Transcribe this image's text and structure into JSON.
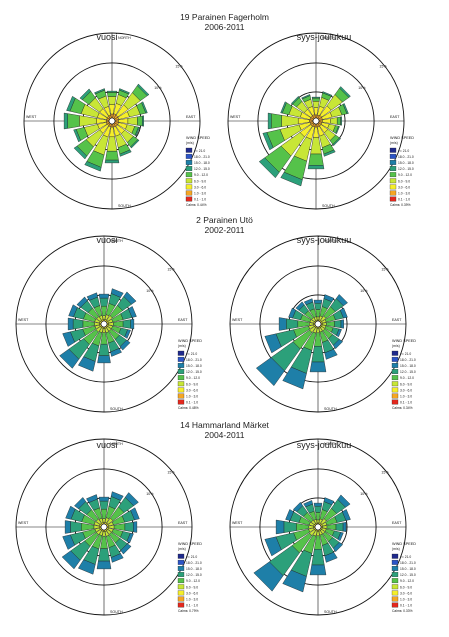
{
  "figure": {
    "title": ""
  },
  "legend_title": [
    "WIND SPEED",
    "(m/s)"
  ],
  "speed_bins": [
    {
      "label": ">= 21.0",
      "color": "#1f2a8c"
    },
    {
      "label": "18.0 - 21.0",
      "color": "#2c55c8"
    },
    {
      "label": "15.0 - 18.0",
      "color": "#1e7fa8"
    },
    {
      "label": "12.0 - 15.0",
      "color": "#2ca07a"
    },
    {
      "label": "9.0 - 12.0",
      "color": "#55c24a"
    },
    {
      "label": "6.0 - 9.0",
      "color": "#c8e636"
    },
    {
      "label": "3.0 - 6.0",
      "color": "#f5ee2a"
    },
    {
      "label": "1.0 - 3.0",
      "color": "#f5a623"
    },
    {
      "label": "0.1 - 1.0",
      "color": "#e2281e"
    }
  ],
  "compass": {
    "north": "NORTH",
    "south": "SOUTH",
    "east": "EAST",
    "west": "WEST"
  },
  "ring_labels": [
    "5%",
    "10%",
    "15%"
  ],
  "stations": [
    {
      "name": "19 Parainen Fagerholm",
      "period": "2006-2011"
    },
    {
      "name": "2 Parainen Utö",
      "period": "2002-2011"
    },
    {
      "name": "14 Hammarland Märket",
      "period": "2004-2011"
    }
  ],
  "panel_titles": [
    "vuosi",
    "syys-joulukuu"
  ],
  "chart_data": [
    {
      "type": "windrose",
      "station": "19 Parainen Fagerholm",
      "panel": "vuosi",
      "calms": "Calms: 0.44%",
      "directions": 16,
      "rmax_percent": 15,
      "totals": [
        4.5,
        5,
        7,
        5.5,
        4.8,
        4.2,
        5,
        5.5,
        6.5,
        8,
        7.2,
        6,
        7.5,
        7.2,
        6,
        5
      ],
      "mix": [
        [
          0.15,
          0.35,
          0.3,
          0.15,
          0.05
        ],
        [
          0.15,
          0.35,
          0.3,
          0.15,
          0.05
        ],
        [
          0.1,
          0.3,
          0.35,
          0.2,
          0.05
        ],
        [
          0.12,
          0.33,
          0.33,
          0.17,
          0.05
        ],
        [
          0.12,
          0.33,
          0.33,
          0.17,
          0.05
        ],
        [
          0.15,
          0.35,
          0.3,
          0.15,
          0.05
        ],
        [
          0.12,
          0.3,
          0.35,
          0.18,
          0.05
        ],
        [
          0.1,
          0.28,
          0.35,
          0.2,
          0.07
        ],
        [
          0.08,
          0.25,
          0.37,
          0.23,
          0.07
        ],
        [
          0.06,
          0.22,
          0.38,
          0.26,
          0.08
        ],
        [
          0.06,
          0.22,
          0.38,
          0.26,
          0.08
        ],
        [
          0.08,
          0.25,
          0.37,
          0.23,
          0.07
        ],
        [
          0.06,
          0.22,
          0.38,
          0.26,
          0.08
        ],
        [
          0.06,
          0.22,
          0.38,
          0.26,
          0.08
        ],
        [
          0.08,
          0.26,
          0.36,
          0.22,
          0.08
        ],
        [
          0.1,
          0.3,
          0.35,
          0.2,
          0.05
        ]
      ]
    },
    {
      "type": "windrose",
      "station": "19 Parainen Fagerholm",
      "panel": "syys-joulukuu",
      "calms": "Calms: 0.39%",
      "directions": 16,
      "rmax_percent": 15,
      "totals": [
        3.5,
        4.5,
        6.5,
        5,
        3.8,
        3.5,
        4.5,
        5.5,
        7.5,
        10.5,
        11,
        8.5,
        7.5,
        5.5,
        4.5,
        4
      ],
      "mix": [
        [
          0.15,
          0.35,
          0.3,
          0.15,
          0.05
        ],
        [
          0.12,
          0.33,
          0.33,
          0.17,
          0.05
        ],
        [
          0.1,
          0.3,
          0.35,
          0.2,
          0.05
        ],
        [
          0.12,
          0.33,
          0.33,
          0.17,
          0.05
        ],
        [
          0.15,
          0.35,
          0.3,
          0.15,
          0.05
        ],
        [
          0.15,
          0.35,
          0.3,
          0.15,
          0.05
        ],
        [
          0.12,
          0.3,
          0.35,
          0.18,
          0.05
        ],
        [
          0.1,
          0.28,
          0.35,
          0.2,
          0.07
        ],
        [
          0.07,
          0.23,
          0.37,
          0.25,
          0.08
        ],
        [
          0.05,
          0.2,
          0.35,
          0.3,
          0.1
        ],
        [
          0.05,
          0.2,
          0.35,
          0.3,
          0.1
        ],
        [
          0.06,
          0.22,
          0.38,
          0.26,
          0.08
        ],
        [
          0.08,
          0.25,
          0.37,
          0.23,
          0.07
        ],
        [
          0.1,
          0.3,
          0.35,
          0.2,
          0.05
        ],
        [
          0.12,
          0.3,
          0.35,
          0.18,
          0.05
        ],
        [
          0.15,
          0.35,
          0.3,
          0.15,
          0.05
        ]
      ]
    },
    {
      "type": "windrose",
      "station": "2 Parainen Utö",
      "panel": "vuosi",
      "calms": "Calms: 0.48%",
      "directions": 16,
      "rmax_percent": 15,
      "totals": [
        4.5,
        5.5,
        6,
        5,
        4.5,
        4,
        4.8,
        5,
        6,
        7.5,
        8.5,
        6.5,
        5.5,
        5.5,
        5,
        4.8
      ],
      "mix": [
        [
          0.05,
          0.15,
          0.35,
          0.3,
          0.15
        ],
        [
          0.05,
          0.15,
          0.35,
          0.3,
          0.15
        ],
        [
          0.05,
          0.15,
          0.35,
          0.3,
          0.15
        ],
        [
          0.05,
          0.15,
          0.35,
          0.3,
          0.15
        ],
        [
          0.06,
          0.18,
          0.36,
          0.28,
          0.12
        ],
        [
          0.06,
          0.18,
          0.36,
          0.28,
          0.12
        ],
        [
          0.05,
          0.15,
          0.35,
          0.3,
          0.15
        ],
        [
          0.05,
          0.15,
          0.35,
          0.3,
          0.15
        ],
        [
          0.04,
          0.12,
          0.32,
          0.32,
          0.2
        ],
        [
          0.03,
          0.1,
          0.3,
          0.35,
          0.22
        ],
        [
          0.03,
          0.1,
          0.3,
          0.35,
          0.22
        ],
        [
          0.04,
          0.12,
          0.32,
          0.32,
          0.2
        ],
        [
          0.05,
          0.15,
          0.35,
          0.3,
          0.15
        ],
        [
          0.05,
          0.15,
          0.35,
          0.3,
          0.15
        ],
        [
          0.05,
          0.15,
          0.35,
          0.3,
          0.15
        ],
        [
          0.05,
          0.15,
          0.35,
          0.3,
          0.15
        ]
      ]
    },
    {
      "type": "windrose",
      "station": "2 Parainen Utö",
      "panel": "syys-joulukuu",
      "calms": "Calms: 0.34%",
      "directions": 16,
      "rmax_percent": 15,
      "totals": [
        3.5,
        4.5,
        5.5,
        4.5,
        3.8,
        3.5,
        4.5,
        5.5,
        7.5,
        10.5,
        12,
        8.5,
        6,
        4.5,
        4,
        3.8
      ],
      "mix": [
        [
          0.05,
          0.15,
          0.35,
          0.3,
          0.15
        ],
        [
          0.05,
          0.15,
          0.35,
          0.3,
          0.15
        ],
        [
          0.05,
          0.15,
          0.35,
          0.3,
          0.15
        ],
        [
          0.05,
          0.15,
          0.35,
          0.3,
          0.15
        ],
        [
          0.06,
          0.18,
          0.36,
          0.28,
          0.12
        ],
        [
          0.06,
          0.18,
          0.36,
          0.28,
          0.12
        ],
        [
          0.05,
          0.15,
          0.35,
          0.3,
          0.15
        ],
        [
          0.04,
          0.12,
          0.32,
          0.32,
          0.2
        ],
        [
          0.03,
          0.1,
          0.3,
          0.35,
          0.22
        ],
        [
          0.02,
          0.08,
          0.28,
          0.37,
          0.25
        ],
        [
          0.02,
          0.08,
          0.28,
          0.37,
          0.25
        ],
        [
          0.03,
          0.1,
          0.3,
          0.35,
          0.22
        ],
        [
          0.04,
          0.12,
          0.32,
          0.32,
          0.2
        ],
        [
          0.05,
          0.15,
          0.35,
          0.3,
          0.15
        ],
        [
          0.05,
          0.15,
          0.35,
          0.3,
          0.15
        ],
        [
          0.05,
          0.15,
          0.35,
          0.3,
          0.15
        ]
      ]
    },
    {
      "type": "windrose",
      "station": "14 Hammarland Märket",
      "panel": "vuosi",
      "calms": "Calms: 0.79%",
      "directions": 16,
      "rmax_percent": 15,
      "totals": [
        4.5,
        5.5,
        6.5,
        5.5,
        5,
        4.5,
        5,
        5.5,
        6.5,
        7.5,
        8,
        6.5,
        6,
        6,
        5.5,
        5
      ],
      "mix": [
        [
          0.05,
          0.15,
          0.35,
          0.3,
          0.15
        ],
        [
          0.05,
          0.15,
          0.35,
          0.3,
          0.15
        ],
        [
          0.05,
          0.15,
          0.35,
          0.3,
          0.15
        ],
        [
          0.05,
          0.15,
          0.35,
          0.3,
          0.15
        ],
        [
          0.06,
          0.18,
          0.36,
          0.28,
          0.12
        ],
        [
          0.06,
          0.18,
          0.36,
          0.28,
          0.12
        ],
        [
          0.05,
          0.15,
          0.35,
          0.3,
          0.15
        ],
        [
          0.05,
          0.15,
          0.35,
          0.3,
          0.15
        ],
        [
          0.04,
          0.12,
          0.32,
          0.32,
          0.2
        ],
        [
          0.03,
          0.1,
          0.3,
          0.35,
          0.22
        ],
        [
          0.03,
          0.1,
          0.3,
          0.35,
          0.22
        ],
        [
          0.04,
          0.12,
          0.32,
          0.32,
          0.2
        ],
        [
          0.05,
          0.15,
          0.35,
          0.3,
          0.15
        ],
        [
          0.05,
          0.15,
          0.35,
          0.3,
          0.15
        ],
        [
          0.05,
          0.15,
          0.35,
          0.3,
          0.15
        ],
        [
          0.05,
          0.15,
          0.35,
          0.3,
          0.15
        ]
      ]
    },
    {
      "type": "windrose",
      "station": "14 Hammarland Märket",
      "panel": "syys-joulukuu",
      "calms": "Calms: 0.33%",
      "directions": 16,
      "rmax_percent": 15,
      "totals": [
        3.5,
        4.5,
        6,
        5,
        4.2,
        3.8,
        4.5,
        5.5,
        7.5,
        10.5,
        12.5,
        8.5,
        6.5,
        5,
        4.5,
        4
      ],
      "mix": [
        [
          0.05,
          0.15,
          0.35,
          0.3,
          0.15
        ],
        [
          0.05,
          0.15,
          0.35,
          0.3,
          0.15
        ],
        [
          0.05,
          0.15,
          0.35,
          0.3,
          0.15
        ],
        [
          0.05,
          0.15,
          0.35,
          0.3,
          0.15
        ],
        [
          0.06,
          0.18,
          0.36,
          0.28,
          0.12
        ],
        [
          0.06,
          0.18,
          0.36,
          0.28,
          0.12
        ],
        [
          0.05,
          0.15,
          0.35,
          0.3,
          0.15
        ],
        [
          0.04,
          0.12,
          0.32,
          0.32,
          0.2
        ],
        [
          0.03,
          0.1,
          0.3,
          0.35,
          0.22
        ],
        [
          0.02,
          0.08,
          0.28,
          0.37,
          0.25
        ],
        [
          0.02,
          0.08,
          0.28,
          0.37,
          0.25
        ],
        [
          0.03,
          0.1,
          0.3,
          0.35,
          0.22
        ],
        [
          0.04,
          0.12,
          0.32,
          0.32,
          0.2
        ],
        [
          0.05,
          0.15,
          0.35,
          0.3,
          0.15
        ],
        [
          0.05,
          0.15,
          0.35,
          0.3,
          0.15
        ],
        [
          0.05,
          0.15,
          0.35,
          0.3,
          0.15
        ]
      ]
    }
  ]
}
